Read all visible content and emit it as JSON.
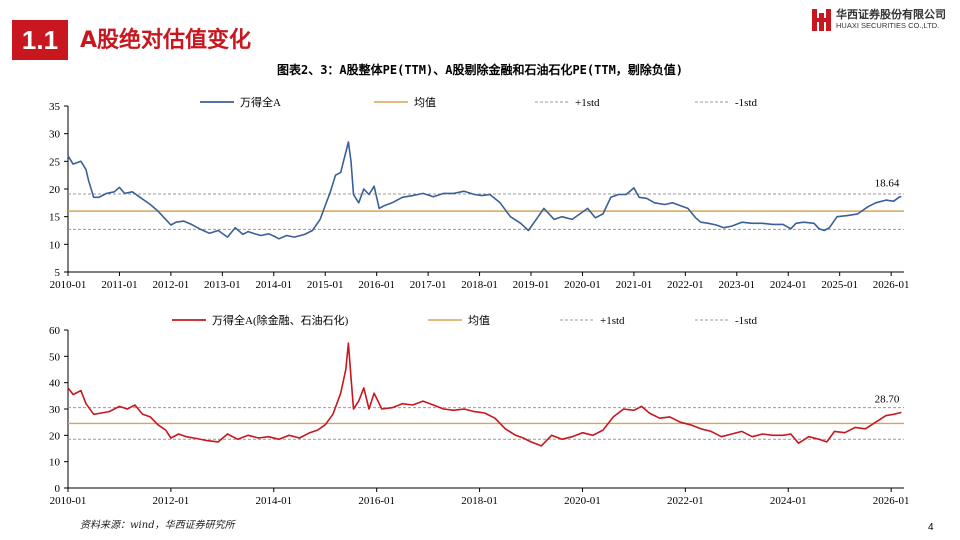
{
  "header": {
    "section_number": "1.1",
    "section_title": "A股绝对估值变化",
    "logo_cn": "华西证券股份有限公司",
    "logo_en": "HUAXI SECURITIES CO.,LTD."
  },
  "figure_title": "图表2、3：A股整体PE(TTM)、A股剔除金融和石油石化PE(TTM，剔除负值)",
  "source": "资料来源：wind，华西证券研究所",
  "page_number": "4",
  "colors": {
    "accent": "#c8171e",
    "series_blue": "#3a5f99",
    "mean_line": "#d9a455",
    "std_line": "#999999"
  },
  "chart_data": [
    {
      "type": "line",
      "legend": {
        "series": "万得全A",
        "mean": "均值",
        "plus": "+1std",
        "minus": "-1std",
        "placement": "top"
      },
      "ylim": [
        5,
        35
      ],
      "yticks": [
        5,
        10,
        15,
        20,
        25,
        30,
        35
      ],
      "x_range": [
        2010.0,
        2026.25
      ],
      "xticks": [
        "2010-01",
        "2011-01",
        "2012-01",
        "2013-01",
        "2014-01",
        "2015-01",
        "2016-01",
        "2017-01",
        "2018-01",
        "2019-01",
        "2020-01",
        "2021-01",
        "2022-01",
        "2023-01",
        "2024-01",
        "2025-01",
        "2026-01"
      ],
      "mean": 16.0,
      "plus_std": 19.1,
      "minus_std": 12.7,
      "end_label": "18.64",
      "x": [
        2010.0,
        2010.1,
        2010.25,
        2010.35,
        2010.4,
        2010.5,
        2010.6,
        2010.75,
        2010.9,
        2011.0,
        2011.1,
        2011.25,
        2011.4,
        2011.6,
        2011.75,
        2011.9,
        2012.0,
        2012.1,
        2012.25,
        2012.4,
        2012.6,
        2012.75,
        2012.92,
        2013.1,
        2013.25,
        2013.4,
        2013.5,
        2013.6,
        2013.75,
        2013.9,
        2014.0,
        2014.1,
        2014.25,
        2014.4,
        2014.6,
        2014.75,
        2014.9,
        2015.0,
        2015.1,
        2015.2,
        2015.3,
        2015.45,
        2015.5,
        2015.55,
        2015.65,
        2015.75,
        2015.85,
        2015.95,
        2016.05,
        2016.15,
        2016.3,
        2016.5,
        2016.7,
        2016.9,
        2017.1,
        2017.3,
        2017.5,
        2017.7,
        2017.9,
        2018.05,
        2018.2,
        2018.4,
        2018.6,
        2018.8,
        2018.95,
        2019.1,
        2019.25,
        2019.45,
        2019.6,
        2019.8,
        2019.95,
        2020.1,
        2020.25,
        2020.4,
        2020.55,
        2020.7,
        2020.85,
        2021.0,
        2021.1,
        2021.25,
        2021.4,
        2021.6,
        2021.75,
        2021.9,
        2022.05,
        2022.2,
        2022.3,
        2022.45,
        2022.6,
        2022.75,
        2022.9,
        2023.1,
        2023.3,
        2023.5,
        2023.7,
        2023.9,
        2024.05,
        2024.15,
        2024.3,
        2024.5,
        2024.6,
        2024.7,
        2024.8,
        2024.95,
        2025.15,
        2025.35,
        2025.55,
        2025.7,
        2025.9,
        2026.05,
        2026.15,
        2026.2
      ],
      "values": [
        26.0,
        24.5,
        25.0,
        23.5,
        21.5,
        18.5,
        18.5,
        19.2,
        19.5,
        20.3,
        19.2,
        19.5,
        18.5,
        17.2,
        16.0,
        14.5,
        13.5,
        14.0,
        14.2,
        13.6,
        12.6,
        12.0,
        12.5,
        11.3,
        13.0,
        11.8,
        12.3,
        12.0,
        11.6,
        11.9,
        11.5,
        11.0,
        11.6,
        11.3,
        11.8,
        12.5,
        14.5,
        17.0,
        19.5,
        22.5,
        23.0,
        28.5,
        25.0,
        19.0,
        17.5,
        20.0,
        19.0,
        20.5,
        16.5,
        17.0,
        17.5,
        18.5,
        18.8,
        19.2,
        18.6,
        19.2,
        19.2,
        19.6,
        19.0,
        18.8,
        19.0,
        17.5,
        15.0,
        13.8,
        12.5,
        14.5,
        16.5,
        14.5,
        15.0,
        14.5,
        15.5,
        16.5,
        14.8,
        15.5,
        18.5,
        19.0,
        19.0,
        20.2,
        18.5,
        18.3,
        17.5,
        17.2,
        17.5,
        17.0,
        16.5,
        14.8,
        14.0,
        13.8,
        13.5,
        13.0,
        13.3,
        14.0,
        13.8,
        13.8,
        13.6,
        13.6,
        12.8,
        13.8,
        14.0,
        13.8,
        12.8,
        12.5,
        13.0,
        15.0,
        15.2,
        15.5,
        16.8,
        17.5,
        18.0,
        17.8,
        18.5,
        18.64
      ]
    },
    {
      "type": "line",
      "legend": {
        "series": "万得全A(除金融、石油石化)",
        "mean": "均值",
        "plus": "+1std",
        "minus": "-1std",
        "placement": "top"
      },
      "ylim": [
        0,
        60
      ],
      "yticks": [
        0,
        10,
        20,
        30,
        40,
        50,
        60
      ],
      "x_range": [
        2010.0,
        2026.25
      ],
      "xticks": [
        "2010-01",
        "2012-01",
        "2014-01",
        "2016-01",
        "2018-01",
        "2020-01",
        "2022-01",
        "2024-01",
        "2026-01"
      ],
      "mean": 24.5,
      "plus_std": 30.5,
      "minus_std": 18.5,
      "end_label": "28.70",
      "x": [
        2010.0,
        2010.1,
        2010.25,
        2010.35,
        2010.5,
        2010.65,
        2010.8,
        2011.0,
        2011.15,
        2011.3,
        2011.45,
        2011.6,
        2011.75,
        2011.9,
        2012.0,
        2012.15,
        2012.3,
        2012.5,
        2012.7,
        2012.92,
        2013.1,
        2013.3,
        2013.5,
        2013.7,
        2013.9,
        2014.1,
        2014.3,
        2014.5,
        2014.7,
        2014.85,
        2015.0,
        2015.15,
        2015.3,
        2015.4,
        2015.45,
        2015.5,
        2015.55,
        2015.65,
        2015.75,
        2015.85,
        2015.95,
        2016.1,
        2016.3,
        2016.5,
        2016.7,
        2016.9,
        2017.1,
        2017.3,
        2017.5,
        2017.7,
        2017.9,
        2018.1,
        2018.3,
        2018.5,
        2018.7,
        2018.85,
        2019.0,
        2019.2,
        2019.4,
        2019.6,
        2019.8,
        2020.0,
        2020.2,
        2020.4,
        2020.6,
        2020.8,
        2021.0,
        2021.15,
        2021.3,
        2021.5,
        2021.7,
        2021.9,
        2022.1,
        2022.3,
        2022.5,
        2022.7,
        2022.9,
        2023.1,
        2023.3,
        2023.5,
        2023.7,
        2023.9,
        2024.05,
        2024.2,
        2024.4,
        2024.6,
        2024.75,
        2024.9,
        2025.1,
        2025.3,
        2025.5,
        2025.7,
        2025.9,
        2026.05,
        2026.15,
        2026.2
      ],
      "values": [
        38.0,
        35.5,
        37.0,
        32.0,
        28.0,
        28.5,
        29.0,
        31.0,
        30.0,
        31.5,
        28.0,
        27.0,
        24.0,
        22.0,
        19.0,
        20.5,
        19.5,
        18.8,
        18.0,
        17.5,
        20.5,
        18.5,
        20.0,
        19.0,
        19.5,
        18.5,
        20.0,
        19.0,
        21.0,
        22.0,
        24.0,
        28.0,
        36.0,
        45.0,
        55.0,
        42.0,
        30.0,
        33.0,
        38.0,
        30.0,
        36.0,
        30.0,
        30.5,
        32.0,
        31.5,
        33.0,
        31.5,
        30.0,
        29.5,
        30.0,
        29.0,
        28.5,
        26.5,
        22.5,
        20.0,
        19.0,
        17.5,
        16.0,
        20.0,
        18.5,
        19.5,
        21.0,
        20.0,
        22.0,
        27.0,
        30.0,
        29.5,
        31.0,
        28.5,
        26.5,
        27.0,
        25.0,
        24.0,
        22.5,
        21.5,
        19.5,
        20.5,
        21.5,
        19.5,
        20.5,
        20.0,
        20.0,
        20.5,
        17.0,
        19.5,
        18.5,
        17.5,
        21.5,
        21.0,
        23.0,
        22.5,
        25.0,
        27.5,
        28.0,
        28.5,
        28.7
      ]
    }
  ]
}
